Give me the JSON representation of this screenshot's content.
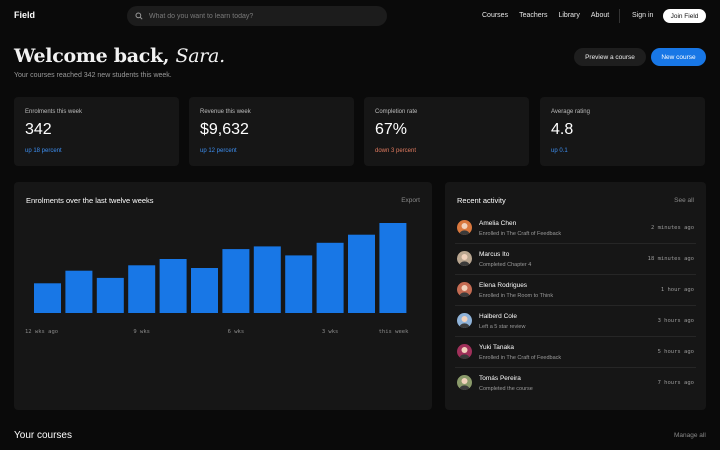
{
  "nav": {
    "logo": "Field",
    "search_placeholder": "What do you want to learn today?",
    "links": [
      "Courses",
      "Teachers",
      "Library",
      "About"
    ],
    "sign_in": "Sign in",
    "join": "Join Field"
  },
  "header": {
    "welcome_prefix": "Welcome back,",
    "user_name": "Sara.",
    "subtitle": "Your courses reached 342 new students this week.",
    "preview_button": "Preview a course",
    "new_button": "New course"
  },
  "stats": [
    {
      "label": "Enrolments this week",
      "value": "342",
      "delta": "up 18 percent",
      "trend": "up"
    },
    {
      "label": "Revenue this week",
      "value": "$9,632",
      "delta": "up 12 percent",
      "trend": "up"
    },
    {
      "label": "Completion rate",
      "value": "67%",
      "delta": "down 3 percent",
      "trend": "down"
    },
    {
      "label": "Average rating",
      "value": "4.8",
      "delta": "up 0.1",
      "trend": "up"
    }
  ],
  "chart": {
    "title": "Enrolments over the last twelve weeks",
    "export": "Export",
    "color": "#1877e6"
  },
  "chart_data": {
    "type": "bar",
    "categories": [
      "12 wks ago",
      "",
      "",
      "9 wks",
      "",
      "",
      "6 wks",
      "",
      "",
      "3 wks",
      "",
      "this week"
    ],
    "values": [
      33,
      47,
      39,
      53,
      60,
      50,
      71,
      74,
      64,
      78,
      87,
      100
    ],
    "xlabel": "",
    "ylabel": "",
    "ylim": [
      0,
      100
    ],
    "grid": false
  },
  "activity": {
    "title": "Recent activity",
    "see_all": "See all",
    "items": [
      {
        "name": "Amelia Chen",
        "action": "Enrolled in The Craft of Feedback",
        "time": "2 minutes ago",
        "avatar_color": "#d9783e"
      },
      {
        "name": "Marcus Ito",
        "action": "Completed Chapter 4",
        "time": "18 minutes ago",
        "avatar_color": "#b9a690"
      },
      {
        "name": "Elena Rodrigues",
        "action": "Enrolled in The Room to Think",
        "time": "1 hour ago",
        "avatar_color": "#c46b52"
      },
      {
        "name": "Halberd Cole",
        "action": "Left a 5 star review",
        "time": "3 hours ago",
        "avatar_color": "#8fb3d9"
      },
      {
        "name": "Yuki Tanaka",
        "action": "Enrolled in The Craft of Feedback",
        "time": "5 hours ago",
        "avatar_color": "#a0305a"
      },
      {
        "name": "Tomás Pereira",
        "action": "Completed the course",
        "time": "7 hours ago",
        "avatar_color": "#8a9a6a"
      }
    ]
  },
  "courses": {
    "title": "Your courses",
    "manage": "Manage all"
  }
}
